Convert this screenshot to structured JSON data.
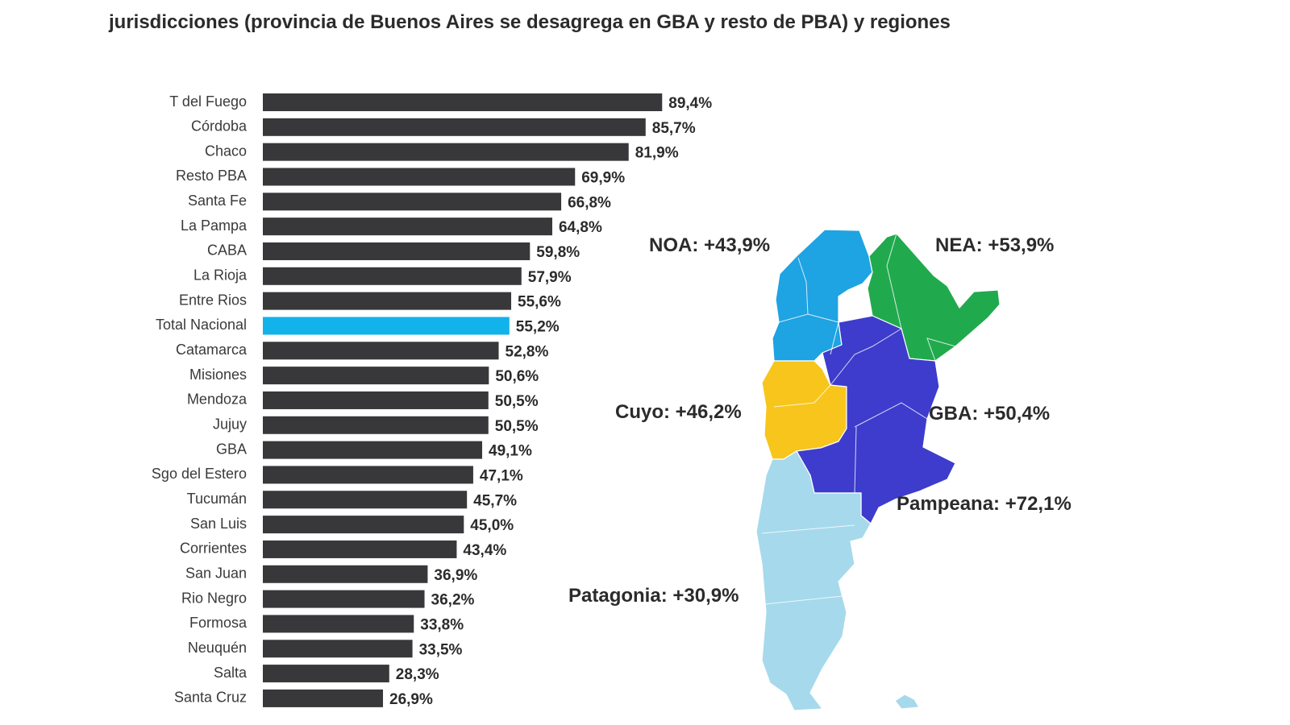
{
  "title": "jurisdicciones (provincia de Buenos Aires se desagrega en GBA y resto de PBA) y regiones",
  "colors": {
    "bar": "#38383b",
    "highlight": "#12b2ea",
    "noa": "#1ea3e3",
    "nea": "#21aa4d",
    "cuyo": "#f7c51c",
    "pampeana": "#3d3ccc",
    "patagonia": "#a6d9ec"
  },
  "chart_data": {
    "type": "bar",
    "orientation": "horizontal",
    "title": "jurisdicciones (provincia de Buenos Aires se desagrega en GBA y resto de PBA) y regiones",
    "xlim": [
      0,
      100
    ],
    "grid": false,
    "legend": "none",
    "highlighted_category": "Total Nacional",
    "categories": [
      "T del Fuego",
      "Córdoba",
      "Chaco",
      "Resto PBA",
      "Santa Fe",
      "La Pampa",
      "CABA",
      "La Rioja",
      "Entre Rios",
      "Total Nacional",
      "Catamarca",
      "Misiones",
      "Mendoza",
      "Jujuy",
      "GBA",
      "Sgo del Estero",
      "Tucumán",
      "San Luis",
      "Corrientes",
      "San Juan",
      "Rio Negro",
      "Formosa",
      "Neuquén",
      "Salta",
      "Santa Cruz"
    ],
    "values": [
      89.4,
      85.7,
      81.9,
      69.9,
      66.8,
      64.8,
      59.8,
      57.9,
      55.6,
      55.2,
      52.8,
      50.6,
      50.5,
      50.5,
      49.1,
      47.1,
      45.7,
      45.0,
      43.4,
      36.9,
      36.2,
      33.8,
      33.5,
      28.3,
      26.9
    ],
    "value_labels": [
      "89,4%",
      "85,7%",
      "81,9%",
      "69,9%",
      "66,8%",
      "64,8%",
      "59,8%",
      "57,9%",
      "55,6%",
      "55,2%",
      "52,8%",
      "50,6%",
      "50,5%",
      "50,5%",
      "49,1%",
      "47,1%",
      "45,7%",
      "45,0%",
      "43,4%",
      "36,9%",
      "36,2%",
      "33,8%",
      "33,5%",
      "28,3%",
      "26,9%"
    ]
  },
  "map_labels": {
    "noa": "NOA: +43,9%",
    "nea": "NEA: +53,9%",
    "cuyo": "Cuyo: +46,2%",
    "gba": "GBA: +50,4%",
    "pampeana": "Pampeana: +72,1%",
    "patagonia": "Patagonia: +30,9%"
  }
}
